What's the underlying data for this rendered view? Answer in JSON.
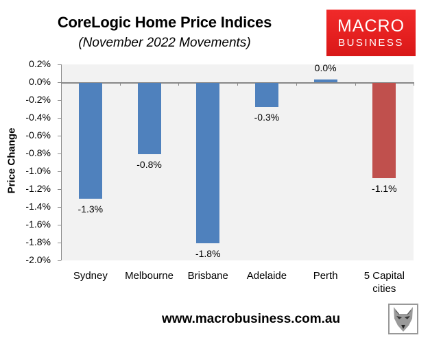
{
  "chart": {
    "title": "CoreLogic Home Price Indices",
    "subtitle": "(November 2022 Movements)",
    "ylabel": "Price Change",
    "url": "www.macrobusiness.com.au"
  },
  "logo": {
    "line1": "MACRO",
    "line2": "BUSINESS",
    "color": "#e42222"
  },
  "yticks": [
    "0.2%",
    "0.0%",
    "-0.2%",
    "-0.4%",
    "-0.6%",
    "-0.8%",
    "-1.0%",
    "-1.2%",
    "-1.4%",
    "-1.6%",
    "-1.8%",
    "-2.0%"
  ],
  "bars": [
    {
      "category": "Sydney",
      "category_line2": "",
      "value": -1.3,
      "label": "-1.3%",
      "color": "#4f81bd"
    },
    {
      "category": "Melbourne",
      "category_line2": "",
      "value": -0.8,
      "label": "-0.8%",
      "color": "#4f81bd"
    },
    {
      "category": "Brisbane",
      "category_line2": "",
      "value": -1.8,
      "label": "-1.8%",
      "color": "#4f81bd"
    },
    {
      "category": "Adelaide",
      "category_line2": "",
      "value": -0.27,
      "label": "-0.3%",
      "color": "#4f81bd"
    },
    {
      "category": "Perth",
      "category_line2": "",
      "value": 0.03,
      "label": "0.0%",
      "color": "#4f81bd"
    },
    {
      "category": "5 Capital",
      "category_line2": "cities",
      "value": -1.07,
      "label": "-1.1%",
      "color": "#c0504d"
    }
  ],
  "chart_data": {
    "type": "bar",
    "title": "CoreLogic Home Price Indices",
    "subtitle": "(November 2022 Movements)",
    "categories": [
      "Sydney",
      "Melbourne",
      "Brisbane",
      "Adelaide",
      "Perth",
      "5 Capital cities"
    ],
    "values": [
      -1.3,
      -0.8,
      -1.8,
      -0.27,
      0.03,
      -1.07
    ],
    "data_labels": [
      "-1.3%",
      "-0.8%",
      "-1.8%",
      "-0.3%",
      "0.0%",
      "-1.1%"
    ],
    "colors": [
      "#4f81bd",
      "#4f81bd",
      "#4f81bd",
      "#4f81bd",
      "#4f81bd",
      "#c0504d"
    ],
    "xlabel": "",
    "ylabel": "Price Change",
    "ylim": [
      -2.0,
      0.2
    ],
    "ytick_step": 0.2,
    "units": "%",
    "grid": false,
    "legend": "none",
    "plot_background": "#f2f2f2"
  }
}
